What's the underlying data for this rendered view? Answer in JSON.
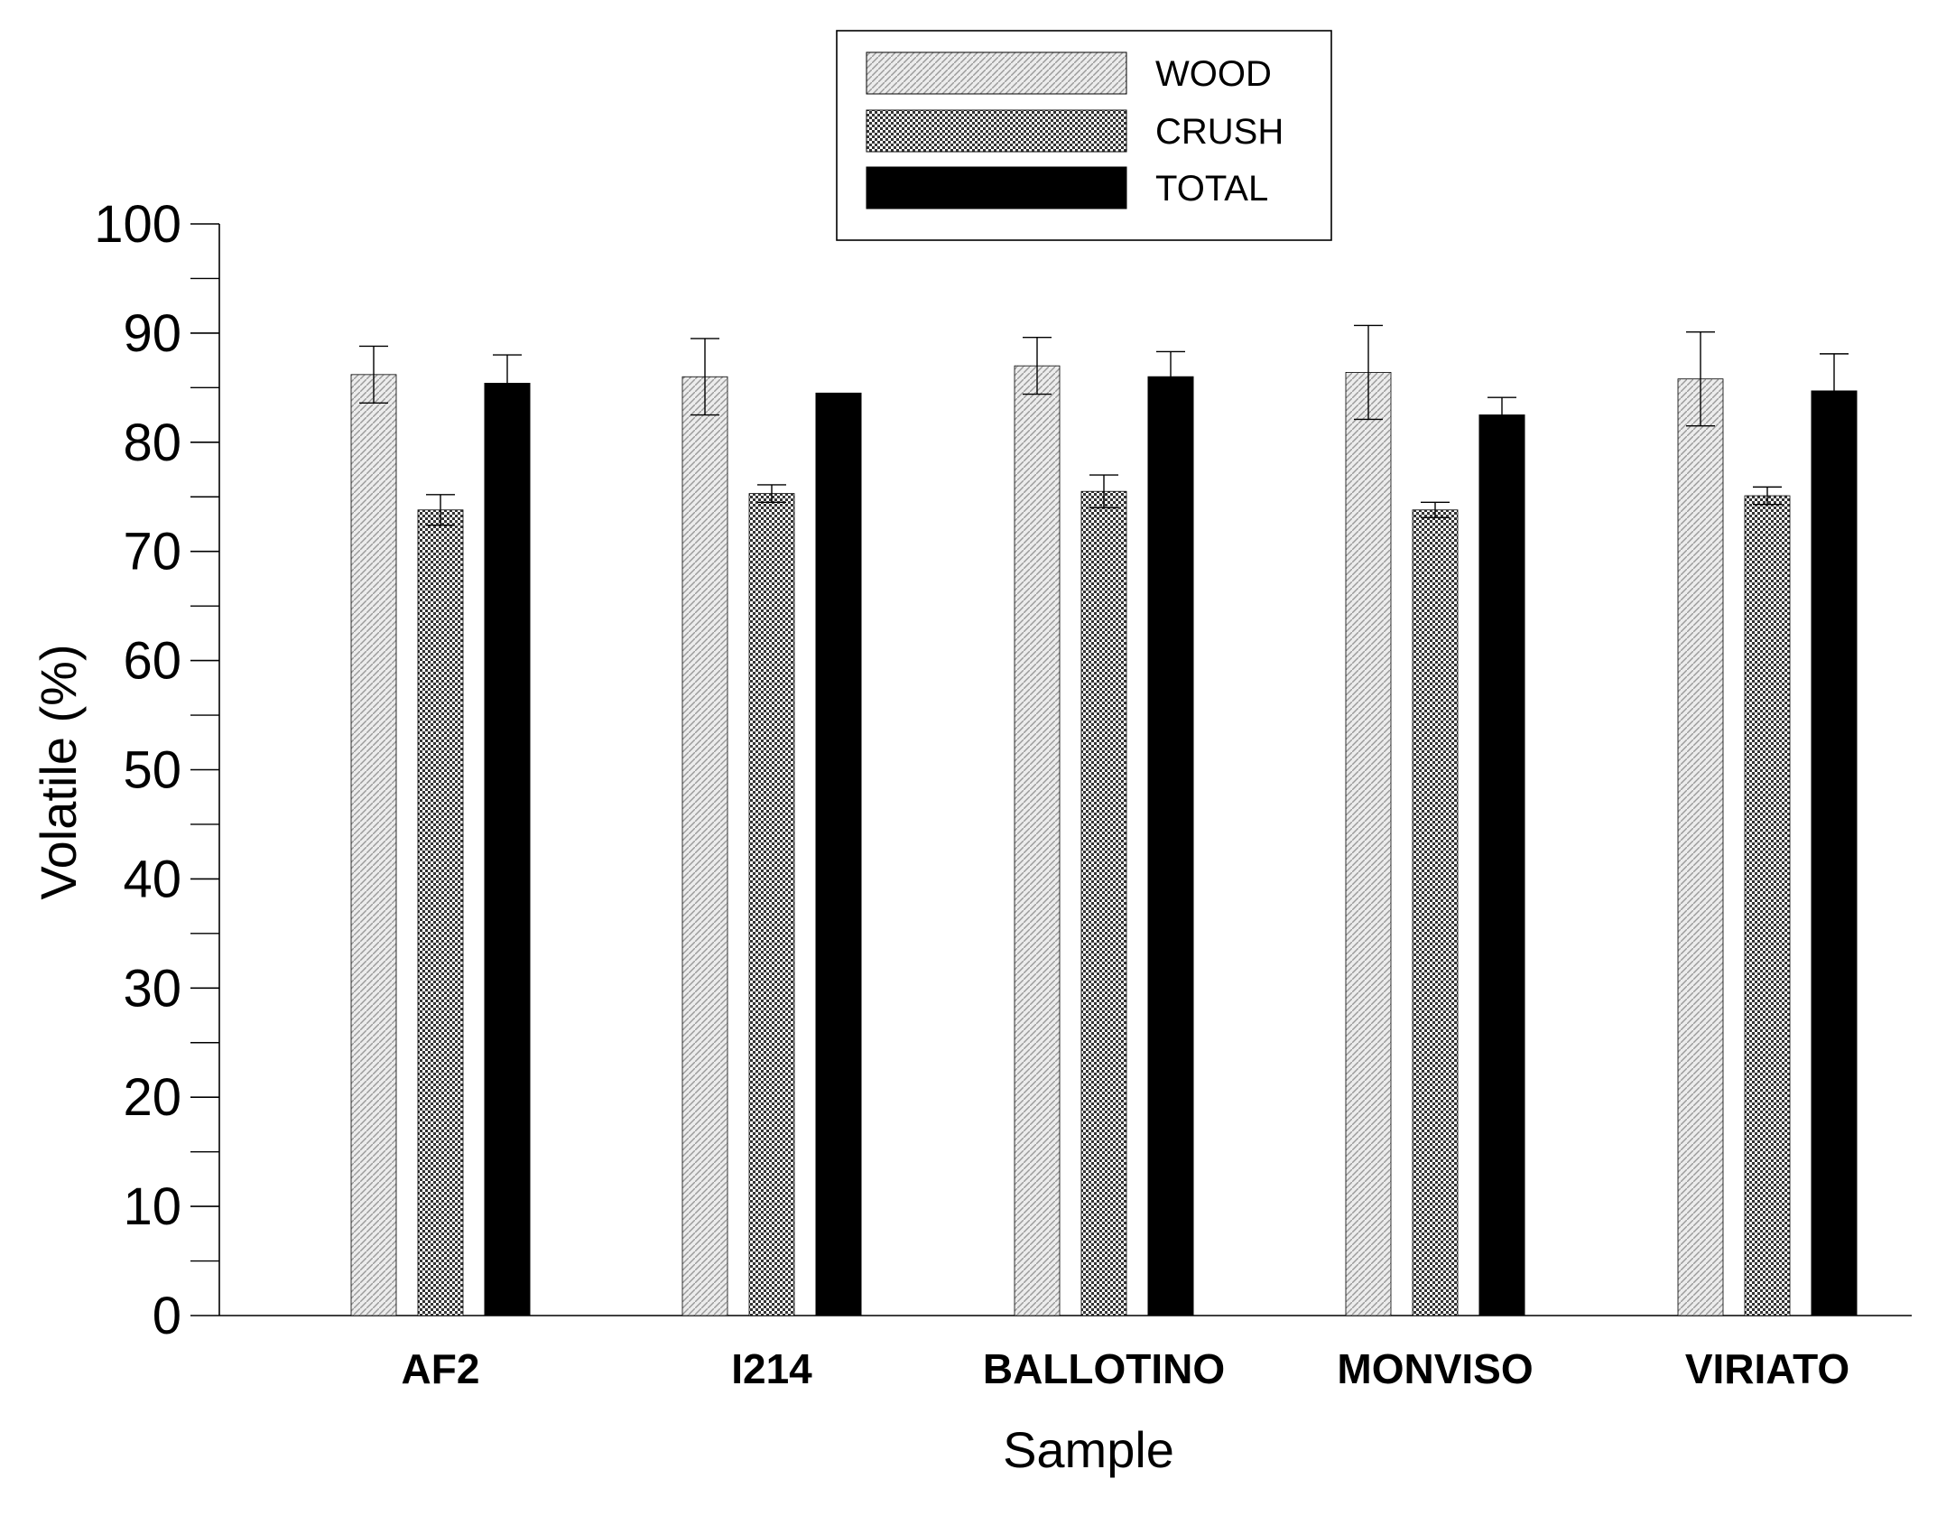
{
  "chart_data": {
    "type": "bar",
    "xlabel": "Sample",
    "ylabel": "Volatile (%)",
    "ylim": [
      0,
      100
    ],
    "yticks": [
      "0",
      "10",
      "20",
      "30",
      "40",
      "50",
      "60",
      "70",
      "80",
      "90",
      "100"
    ],
    "minor_tick_step": 5,
    "grid": false,
    "legend_position": "top-center",
    "categories": [
      "AF2",
      "I214",
      "BALLOTINO",
      "MONVISO",
      "VIRIATO"
    ],
    "series": [
      {
        "name": "WOOD",
        "pattern": "diagonal-hatch",
        "color": "#d9d9d9",
        "values": [
          86.2,
          86.0,
          87.0,
          86.4,
          85.8
        ],
        "errors": [
          2.6,
          3.5,
          2.6,
          4.3,
          4.3
        ]
      },
      {
        "name": "CRUSH",
        "pattern": "checker",
        "color": "#7a7a7a",
        "values": [
          73.8,
          75.3,
          75.5,
          73.8,
          75.1
        ],
        "errors": [
          1.4,
          0.8,
          1.5,
          0.7,
          0.8
        ]
      },
      {
        "name": "TOTAL",
        "pattern": "solid",
        "color": "#000000",
        "values": [
          85.4,
          84.5,
          86.0,
          82.5,
          84.7
        ],
        "errors": [
          2.6,
          0,
          2.3,
          1.6,
          3.4
        ]
      }
    ]
  }
}
